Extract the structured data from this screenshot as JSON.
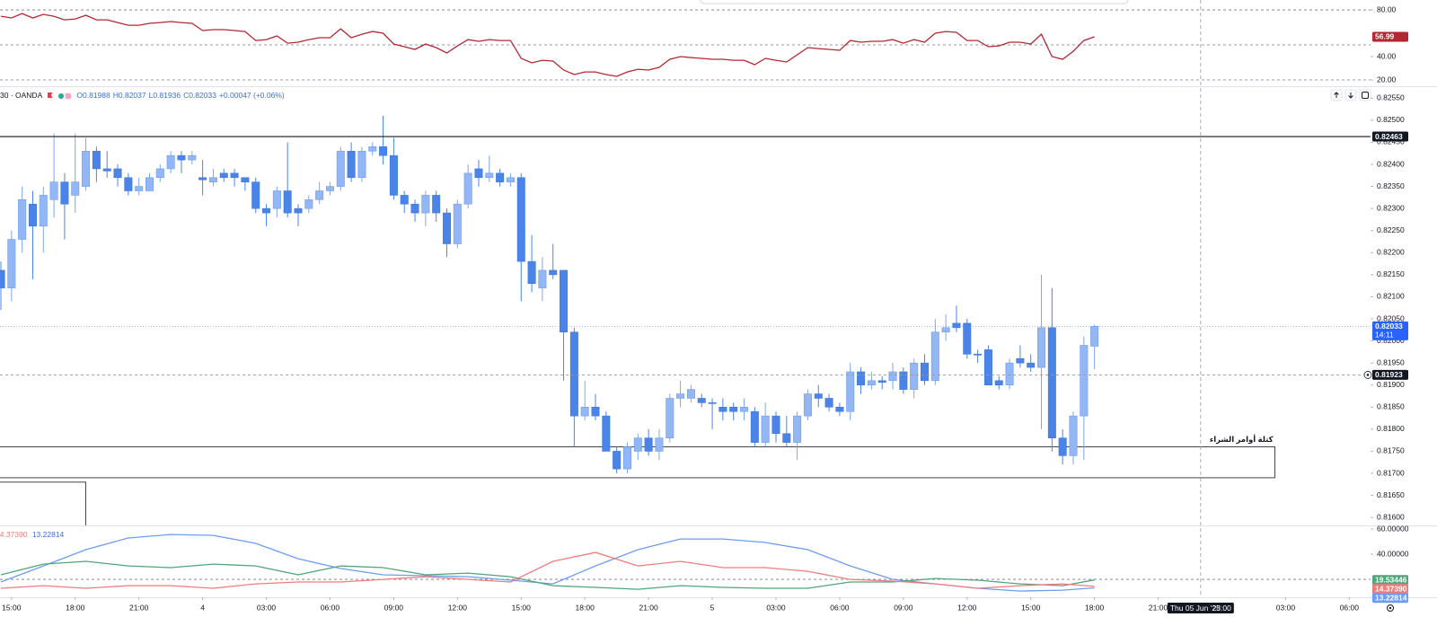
{
  "chart_data": [
    {
      "type": "line",
      "color": "#b22833",
      "values": [
        74.6,
        73.1,
        76.9,
        73.1,
        76.2,
        74.6,
        71.5,
        72.3,
        75.4,
        71.5,
        71.5,
        69.2,
        66.9,
        66.9,
        68.5,
        69.2,
        70.0,
        69.2,
        68.5,
        62.3,
        63.1,
        63.1,
        62.3,
        61.5,
        53.8,
        54.6,
        57.7,
        51.5,
        52.3,
        54.6,
        56.2,
        56.2,
        63.8,
        56.2,
        59.2,
        61.5,
        60.0,
        50.8,
        48.5,
        46.2,
        50.8,
        47.7,
        43.1,
        49.2,
        54.6,
        53.1,
        54.6,
        53.8,
        53.8,
        38.5,
        34.6,
        36.9,
        36.2,
        28.5,
        24.6,
        26.9,
        26.9,
        24.6,
        23.1,
        26.9,
        29.2,
        28.5,
        30.8,
        37.7,
        40.0,
        39.2,
        38.5,
        37.7,
        37.7,
        36.9,
        36.9,
        33.1,
        38.5,
        36.9,
        35.4,
        41.5,
        47.7,
        46.9,
        46.2,
        45.4,
        53.8,
        52.3,
        53.1,
        53.1,
        54.6,
        51.5,
        54.6,
        52.3,
        60.0,
        61.5,
        60.8,
        53.8,
        53.8,
        48.5,
        49.2,
        52.3,
        52.3,
        50.8,
        59.2,
        40.0,
        37.7,
        44.6,
        53.8,
        56.99
      ],
      "ylim": [
        15.4,
        88.5
      ],
      "yticks": [
        {
          "value": 80,
          "label": "80.00"
        },
        {
          "value": 40,
          "label": "40.00"
        },
        {
          "value": 20,
          "label": "20.00"
        }
      ],
      "levels": [
        80,
        50,
        20
      ]
    },
    {
      "type": "candlestick",
      "symbol": "30 · OANDA",
      "legend_keys": [
        "O",
        "H",
        "L",
        "C"
      ],
      "change": "+0.00047 (+0.06%)",
      "up_color": "#93b7f5",
      "down_color": "#4a84e8",
      "open": [
        0.8216,
        0.8212,
        0.8223,
        0.8231,
        0.8226,
        0.8232,
        0.8236,
        0.8233,
        0.8235,
        0.8243,
        0.8239,
        0.8239,
        0.8237,
        0.8234,
        0.8234,
        0.8237,
        0.8239,
        0.8242,
        0.8241,
        0.8237,
        0.8236,
        0.8238,
        0.8238,
        0.8237,
        0.8236,
        0.823,
        0.823,
        0.8234,
        0.823,
        0.823,
        0.8232,
        0.8234,
        0.8235,
        0.8243,
        0.8237,
        0.8243,
        0.8244,
        0.8242,
        0.8233,
        0.8231,
        0.8229,
        0.8233,
        0.8229,
        0.8222,
        0.8231,
        0.8239,
        0.8237,
        0.8238,
        0.8236,
        0.8237,
        0.8218,
        0.8212,
        0.8216,
        0.8216,
        0.8202,
        0.8183,
        0.8185,
        0.8183,
        0.8175,
        0.8171,
        0.8175,
        0.8178,
        0.8175,
        0.8178,
        0.8187,
        0.8187,
        0.8187,
        0.8186,
        0.8185,
        0.8185,
        0.8184,
        0.8184,
        0.8177,
        0.8183,
        0.8179,
        0.8177,
        0.8183,
        0.8188,
        0.8187,
        0.8185,
        0.8184,
        0.8193,
        0.819,
        0.8191,
        0.8191,
        0.8193,
        0.8189,
        0.8195,
        0.8191,
        0.8202,
        0.8204,
        0.8204,
        0.8197,
        0.8198,
        0.8191,
        0.819,
        0.8196,
        0.8195,
        0.8194,
        0.8203,
        0.8178,
        0.8174,
        0.8183,
        0.81988
      ],
      "high": [
        0.8218,
        0.8225,
        0.8235,
        0.8234,
        0.8235,
        0.8247,
        0.8238,
        0.8247,
        0.8246,
        0.8244,
        0.8243,
        0.824,
        0.8238,
        0.8237,
        0.8238,
        0.824,
        0.8243,
        0.8243,
        0.8243,
        0.8241,
        0.8239,
        0.8239,
        0.8239,
        0.8237,
        0.8237,
        0.8231,
        0.8235,
        0.8245,
        0.8231,
        0.8233,
        0.8236,
        0.8236,
        0.8244,
        0.8245,
        0.8244,
        0.8245,
        0.8251,
        0.8246,
        0.8234,
        0.8232,
        0.8234,
        0.8234,
        0.823,
        0.8232,
        0.824,
        0.8241,
        0.8242,
        0.8239,
        0.8238,
        0.8238,
        0.8224,
        0.8219,
        0.8222,
        0.8216,
        0.8203,
        0.8191,
        0.8188,
        0.8184,
        0.8176,
        0.8177,
        0.8179,
        0.818,
        0.818,
        0.8188,
        0.8191,
        0.819,
        0.8188,
        0.8187,
        0.8187,
        0.8186,
        0.8187,
        0.8185,
        0.8186,
        0.8184,
        0.8183,
        0.8184,
        0.8189,
        0.819,
        0.8188,
        0.8186,
        0.8195,
        0.8194,
        0.8193,
        0.8192,
        0.8195,
        0.8194,
        0.8196,
        0.8197,
        0.8205,
        0.8206,
        0.8208,
        0.8205,
        0.8198,
        0.8199,
        0.8192,
        0.8196,
        0.8199,
        0.8197,
        0.8215,
        0.8212,
        0.818,
        0.8184,
        0.8201,
        0.82037
      ],
      "low": [
        0.8207,
        0.8209,
        0.822,
        0.8214,
        0.822,
        0.8228,
        0.8223,
        0.8229,
        0.8234,
        0.8236,
        0.8237,
        0.8235,
        0.8233,
        0.8233,
        0.8234,
        0.8236,
        0.8238,
        0.8238,
        0.824,
        0.8233,
        0.8235,
        0.8236,
        0.8235,
        0.8234,
        0.8229,
        0.8226,
        0.8228,
        0.8228,
        0.8226,
        0.8229,
        0.8231,
        0.8233,
        0.8234,
        0.8236,
        0.8236,
        0.8242,
        0.824,
        0.8232,
        0.8229,
        0.8227,
        0.8226,
        0.8227,
        0.8219,
        0.8221,
        0.823,
        0.8235,
        0.8236,
        0.8235,
        0.8235,
        0.8209,
        0.8211,
        0.8209,
        0.8214,
        0.8191,
        0.8176,
        0.8182,
        0.8182,
        0.8175,
        0.817,
        0.817,
        0.8173,
        0.8174,
        0.8173,
        0.8177,
        0.8185,
        0.8186,
        0.8185,
        0.818,
        0.8182,
        0.8182,
        0.8182,
        0.8176,
        0.8176,
        0.8177,
        0.8176,
        0.8173,
        0.8182,
        0.8185,
        0.8184,
        0.8183,
        0.8182,
        0.8188,
        0.8189,
        0.8189,
        0.8189,
        0.8188,
        0.8187,
        0.819,
        0.819,
        0.82,
        0.8202,
        0.8196,
        0.8195,
        0.819,
        0.8189,
        0.8189,
        0.8194,
        0.8193,
        0.818,
        0.8175,
        0.8172,
        0.8172,
        0.8173,
        0.81936
      ],
      "close": [
        0.8212,
        0.8223,
        0.8232,
        0.8226,
        0.8233,
        0.8236,
        0.8231,
        0.8236,
        0.8243,
        0.8239,
        0.82385,
        0.8237,
        0.8234,
        0.8235,
        0.8237,
        0.8239,
        0.8242,
        0.8241,
        0.8242,
        0.82365,
        0.8237,
        0.8237,
        0.8237,
        0.8236,
        0.823,
        0.8229,
        0.8234,
        0.8229,
        0.8229,
        0.8232,
        0.8234,
        0.8235,
        0.8243,
        0.8237,
        0.8243,
        0.8244,
        0.8242,
        0.8233,
        0.8231,
        0.8229,
        0.8233,
        0.8229,
        0.8222,
        0.8231,
        0.8238,
        0.8237,
        0.8238,
        0.8236,
        0.8237,
        0.8218,
        0.8213,
        0.8216,
        0.8215,
        0.8202,
        0.8183,
        0.8185,
        0.8183,
        0.8175,
        0.8171,
        0.8176,
        0.8178,
        0.8175,
        0.8178,
        0.8187,
        0.8188,
        0.8189,
        0.8186,
        0.81858,
        0.8184,
        0.8184,
        0.8185,
        0.8177,
        0.8183,
        0.8179,
        0.8177,
        0.8183,
        0.8188,
        0.8187,
        0.8185,
        0.8184,
        0.8193,
        0.819,
        0.8191,
        0.81906,
        0.8193,
        0.8189,
        0.8195,
        0.8191,
        0.8202,
        0.8203,
        0.8203,
        0.8197,
        0.81968,
        0.819,
        0.819,
        0.8195,
        0.8195,
        0.8194,
        0.8203,
        0.8178,
        0.8174,
        0.8183,
        0.8199,
        0.82033
      ],
      "xlim": [
        0,
        129
      ],
      "ylim": [
        0.81582,
        0.82573
      ],
      "yticks": [
        {
          "value": 0.816,
          "label": "0.81600"
        },
        {
          "value": 0.8165,
          "label": "0.81650"
        },
        {
          "value": 0.817,
          "label": "0.81700"
        },
        {
          "value": 0.8175,
          "label": "0.81750"
        },
        {
          "value": 0.818,
          "label": "0.81800"
        },
        {
          "value": 0.8185,
          "label": "0.81850"
        },
        {
          "value": 0.819,
          "label": "0.81900"
        },
        {
          "value": 0.8195,
          "label": "0.81950"
        },
        {
          "value": 0.82,
          "label": "0.82000"
        },
        {
          "value": 0.8205,
          "label": "0.82050"
        },
        {
          "value": 0.821,
          "label": "0.82100"
        },
        {
          "value": 0.8215,
          "label": "0.82150"
        },
        {
          "value": 0.822,
          "label": "0.82200"
        },
        {
          "value": 0.8225,
          "label": "0.82250"
        },
        {
          "value": 0.823,
          "label": "0.82300"
        },
        {
          "value": 0.8235,
          "label": "0.82350"
        },
        {
          "value": 0.824,
          "label": "0.82400"
        },
        {
          "value": 0.8245,
          "label": "0.82450"
        },
        {
          "value": 0.825,
          "label": "0.82500"
        },
        {
          "value": 0.8255,
          "label": "0.82550"
        }
      ],
      "xticks": [
        {
          "value": 1,
          "label": "15:00"
        },
        {
          "value": 7,
          "label": "18:00"
        },
        {
          "value": 13,
          "label": "21:00"
        },
        {
          "value": 19,
          "label": "4"
        },
        {
          "value": 25,
          "label": "03:00"
        },
        {
          "value": 31,
          "label": "06:00"
        },
        {
          "value": 37,
          "label": "09:00"
        },
        {
          "value": 43,
          "label": "12:00"
        },
        {
          "value": 49,
          "label": "15:00"
        },
        {
          "value": 55,
          "label": "18:00"
        },
        {
          "value": 61,
          "label": "21:00"
        },
        {
          "value": 67,
          "label": "5"
        },
        {
          "value": 73,
          "label": "03:00"
        },
        {
          "value": 79,
          "label": "06:00"
        },
        {
          "value": 85,
          "label": "09:00"
        },
        {
          "value": 91,
          "label": "12:00"
        },
        {
          "value": 97,
          "label": "15:00"
        },
        {
          "value": 103,
          "label": "18:00"
        },
        {
          "value": 109,
          "label": "21:00"
        },
        {
          "value": 121,
          "label": "03:00"
        },
        {
          "value": 127,
          "label": "06:00"
        }
      ],
      "levels": [
        {
          "value": 0.82463,
          "style": "solid"
        },
        {
          "value": 0.81923,
          "style": "dashed"
        }
      ],
      "countdown": "14:11",
      "zones": [
        {
          "label": "كتلة أوامر الشراء",
          "top": 0.8176,
          "bottom": 0.8169,
          "from": -1,
          "to": 120
        },
        {
          "top": 0.8168,
          "bottom": 0.8158,
          "from": -1,
          "to": 8
        }
      ],
      "crosshair": {
        "x": 113,
        "date": "Thu 05 Jun '25",
        "time": "23:00"
      }
    },
    {
      "type": "line",
      "x": [
        0,
        4,
        8,
        12,
        16,
        20,
        24,
        28,
        32,
        36,
        40,
        44,
        48,
        52,
        56,
        60,
        64,
        68,
        72,
        76,
        80,
        84,
        88,
        92,
        96,
        100,
        103
      ],
      "series": [
        {
          "color": "#6d9cf4",
          "values": [
            17.9,
            30.7,
            43.6,
            52.9,
            55.7,
            55.0,
            48.6,
            36.4,
            28.6,
            23.6,
            22.9,
            22.1,
            19.3,
            16.4,
            30.7,
            43.6,
            52.1,
            52.1,
            49.3,
            43.6,
            30.7,
            20.0,
            16.4,
            12.9,
            10.7,
            11.4,
            13.22814
          ]
        },
        {
          "color": "#4fa67a",
          "values": [
            23.6,
            32.1,
            34.3,
            30.7,
            29.3,
            32.1,
            30.7,
            23.6,
            30.7,
            29.3,
            23.6,
            25.0,
            22.1,
            15.0,
            13.6,
            12.1,
            15.0,
            13.6,
            12.9,
            12.9,
            17.9,
            17.9,
            20.7,
            19.3,
            16.4,
            15.0,
            19.53446
          ]
        },
        {
          "color": "#f07c7c",
          "values": [
            12.9,
            15.0,
            12.9,
            15.0,
            15.0,
            12.9,
            16.4,
            17.9,
            17.9,
            20.0,
            22.1,
            20.0,
            17.9,
            34.3,
            41.4,
            30.7,
            34.3,
            29.3,
            29.3,
            26.4,
            20.0,
            18.6,
            16.4,
            12.9,
            15.0,
            16.4,
            14.3739
          ],
          "last_label": "14.37390"
        }
      ],
      "ylim": [
        7.9,
        62.9
      ],
      "yticks": [
        {
          "value": 60,
          "label": "60.00000"
        },
        {
          "value": 40,
          "label": "40.00000"
        }
      ],
      "levels": [
        20
      ]
    }
  ]
}
